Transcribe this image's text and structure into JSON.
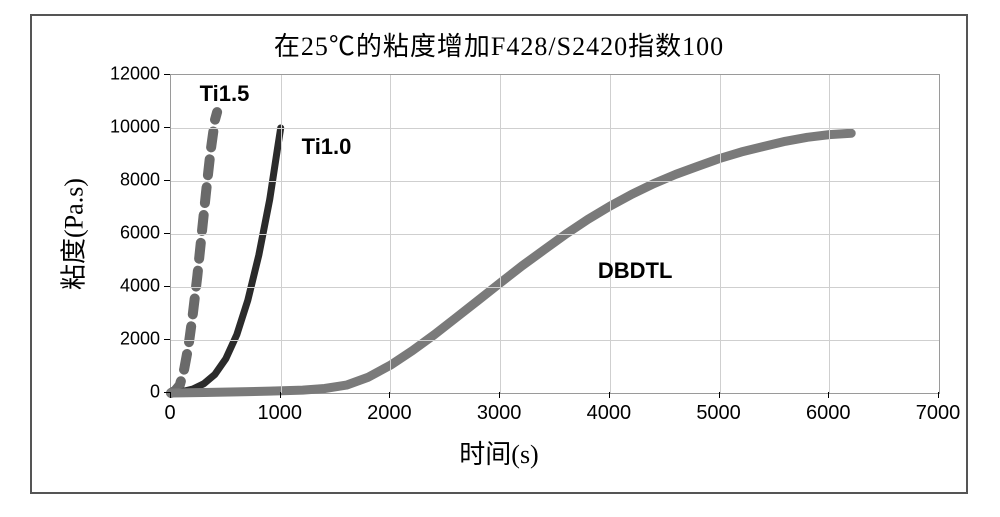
{
  "chart": {
    "type": "line",
    "title": "在25℃的粘度增加F428/S2420指数100",
    "title_fontsize": 26,
    "xlabel": "时间(s)",
    "ylabel": "粘度(Pa.s)",
    "label_fontsize": 26,
    "tick_fontsize": 18,
    "xlim": [
      0,
      7000
    ],
    "ylim": [
      0,
      12000
    ],
    "xticks": [
      0,
      1000,
      2000,
      3000,
      4000,
      5000,
      6000,
      7000
    ],
    "yticks": [
      0,
      2000,
      4000,
      6000,
      8000,
      10000,
      12000
    ],
    "background_color": "#ffffff",
    "grid_color": "#cfcfcf",
    "axis_color": "#9a9a9a",
    "outer_border_color": "#555555",
    "plot_aspect": 2.4,
    "series": [
      {
        "name": "Ti1.5",
        "label": "Ti1.5",
        "color": "#6a6a6a",
        "line_width": 10,
        "dash": "16,12",
        "label_pos_xy": [
          270,
          11300
        ],
        "points": [
          [
            0,
            0
          ],
          [
            40,
            100
          ],
          [
            80,
            300
          ],
          [
            120,
            900
          ],
          [
            160,
            1800
          ],
          [
            200,
            3000
          ],
          [
            240,
            4400
          ],
          [
            280,
            6000
          ],
          [
            320,
            7600
          ],
          [
            360,
            9100
          ],
          [
            400,
            10300
          ],
          [
            420,
            10600
          ]
        ]
      },
      {
        "name": "Ti1.0",
        "label": "Ti1.0",
        "color": "#2b2b2b",
        "line_width": 7,
        "dash": "",
        "label_pos_xy": [
          1200,
          9300
        ],
        "points": [
          [
            0,
            0
          ],
          [
            100,
            50
          ],
          [
            200,
            150
          ],
          [
            300,
            350
          ],
          [
            400,
            700
          ],
          [
            500,
            1300
          ],
          [
            600,
            2200
          ],
          [
            700,
            3500
          ],
          [
            800,
            5200
          ],
          [
            900,
            7300
          ],
          [
            970,
            9200
          ],
          [
            1000,
            10000
          ]
        ]
      },
      {
        "name": "DBDTL",
        "label": "DBDTL",
        "color": "#7a7a7a",
        "line_width": 9,
        "dash": "",
        "label_pos_xy": [
          3900,
          4600
        ],
        "points": [
          [
            0,
            0
          ],
          [
            300,
            20
          ],
          [
            600,
            40
          ],
          [
            900,
            70
          ],
          [
            1200,
            110
          ],
          [
            1400,
            170
          ],
          [
            1600,
            300
          ],
          [
            1800,
            600
          ],
          [
            2000,
            1050
          ],
          [
            2200,
            1600
          ],
          [
            2400,
            2200
          ],
          [
            2600,
            2850
          ],
          [
            2800,
            3500
          ],
          [
            3000,
            4150
          ],
          [
            3200,
            4800
          ],
          [
            3400,
            5400
          ],
          [
            3600,
            6000
          ],
          [
            3800,
            6550
          ],
          [
            4000,
            7050
          ],
          [
            4200,
            7500
          ],
          [
            4400,
            7900
          ],
          [
            4600,
            8250
          ],
          [
            4800,
            8550
          ],
          [
            5000,
            8850
          ],
          [
            5200,
            9100
          ],
          [
            5400,
            9300
          ],
          [
            5600,
            9500
          ],
          [
            5800,
            9650
          ],
          [
            6000,
            9750
          ],
          [
            6200,
            9800
          ]
        ]
      }
    ]
  }
}
